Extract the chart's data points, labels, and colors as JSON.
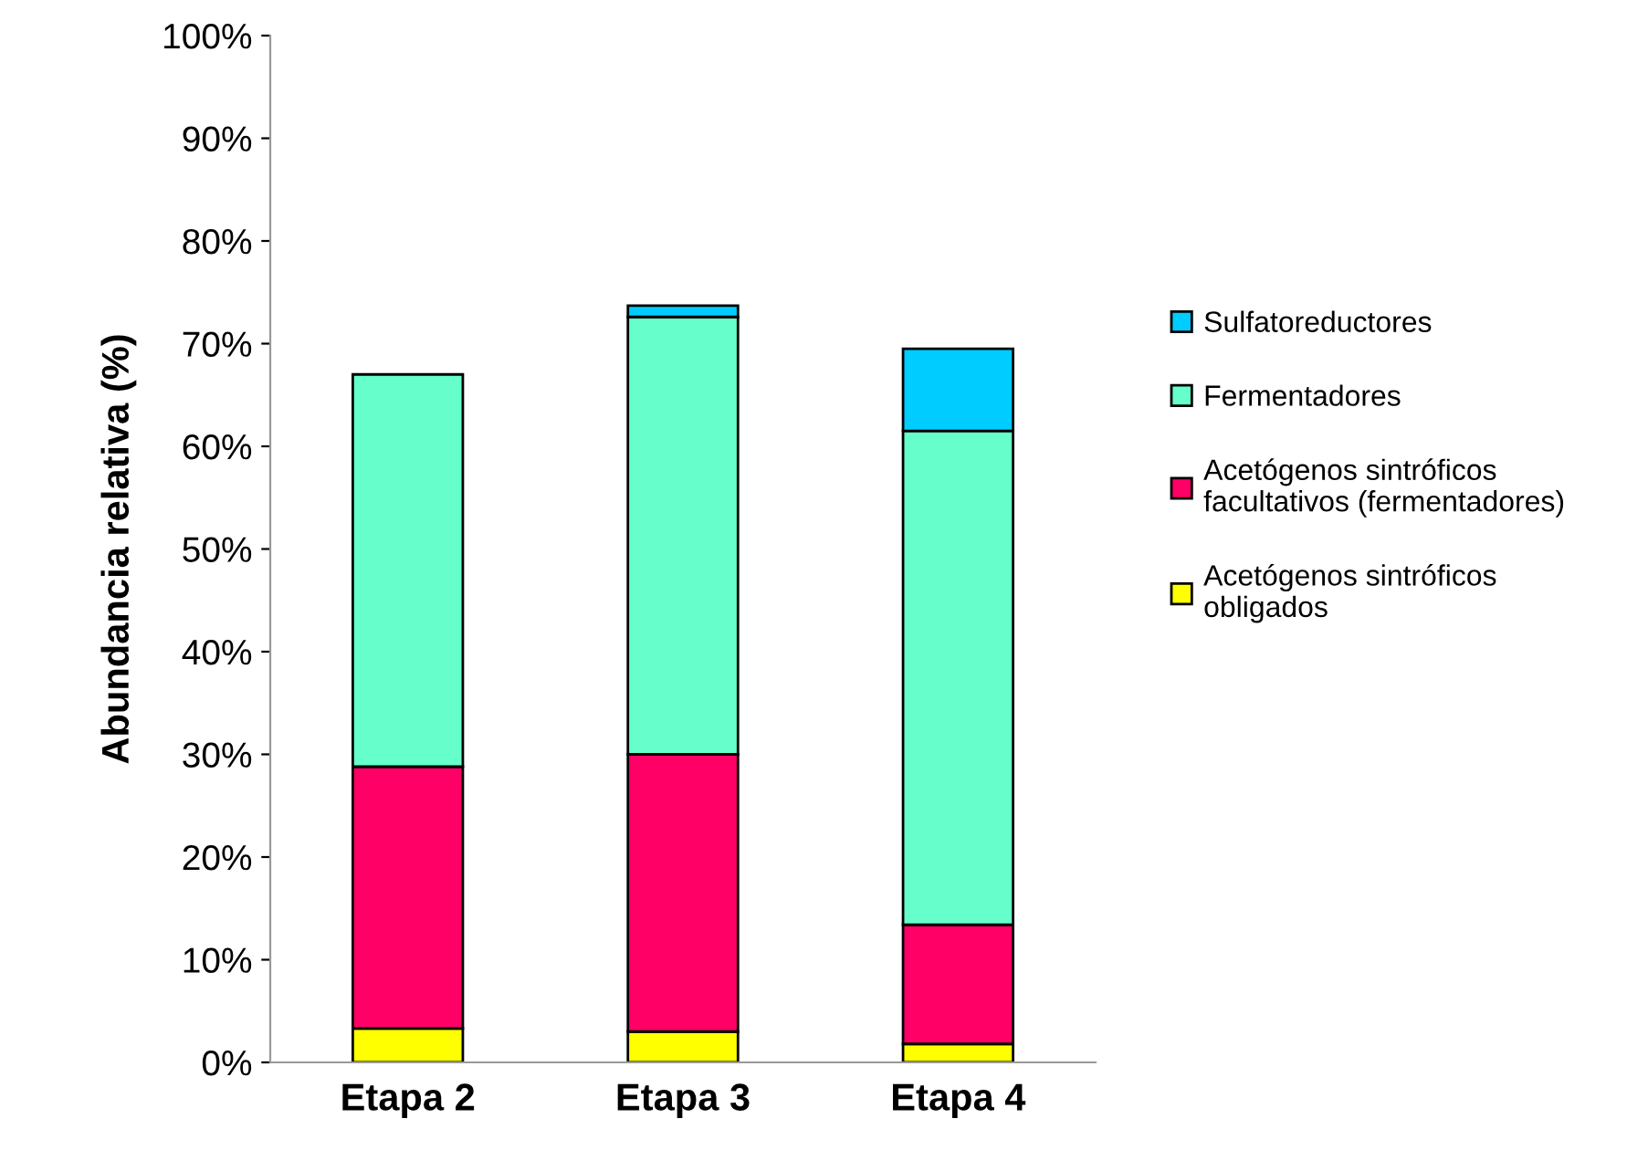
{
  "chart_data": {
    "type": "bar",
    "stacked": true,
    "ylabel": "Abundancia relativa (%)",
    "categories": [
      "Etapa 2",
      "Etapa 3",
      "Etapa 4"
    ],
    "series": [
      {
        "name": "Acetógenos sintróficos\nobligados",
        "color": "#ffff00",
        "values": [
          3.3,
          3.0,
          1.8
        ]
      },
      {
        "name": "Acetógenos sintróficos\nfacultativos (fermentadores)",
        "color": "#ff0066",
        "values": [
          25.5,
          27.0,
          11.6
        ]
      },
      {
        "name": "Fermentadores",
        "color": "#66ffcc",
        "values": [
          38.2,
          42.6,
          48.1
        ]
      },
      {
        "name": "Sulfatoreductores",
        "color": "#00ccff",
        "values": [
          null,
          1.1,
          8.0
        ]
      }
    ],
    "ylim": [
      0,
      100
    ],
    "yticks": [
      {
        "value": 0,
        "label": "0%"
      },
      {
        "value": 10,
        "label": "10%"
      },
      {
        "value": 20,
        "label": "20%"
      },
      {
        "value": 30,
        "label": "30%"
      },
      {
        "value": 40,
        "label": "40%"
      },
      {
        "value": 50,
        "label": "50%"
      },
      {
        "value": 60,
        "label": "60%"
      },
      {
        "value": 70,
        "label": "70%"
      },
      {
        "value": 80,
        "label": "80%"
      },
      {
        "value": 90,
        "label": "90%"
      },
      {
        "value": 100,
        "label": "100%"
      }
    ],
    "grid": false,
    "legend": "right"
  }
}
